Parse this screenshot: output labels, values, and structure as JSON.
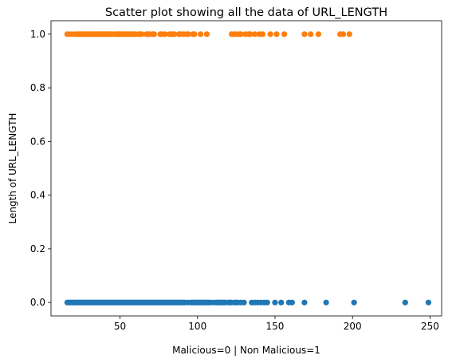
{
  "chart_data": {
    "type": "scatter",
    "title": "Scatter plot showing all the data of URL_LENGTH",
    "xlabel": "Malicious=0 | Non Malicious=1",
    "ylabel": "Length of URL_LENGTH",
    "xlim": [
      5.5,
      257.5
    ],
    "ylim": [
      -0.05,
      1.05
    ],
    "xticks": [
      50,
      100,
      150,
      200,
      250
    ],
    "xtick_labels": [
      "50",
      "100",
      "150",
      "200",
      "250"
    ],
    "yticks": [
      0.0,
      0.2,
      0.4,
      0.6,
      0.8,
      1.0
    ],
    "ytick_labels": [
      "0.0",
      "0.2",
      "0.4",
      "0.6",
      "0.8",
      "1.0"
    ],
    "grid": false,
    "series": [
      {
        "color": "#1f77b4",
        "y": 0,
        "x": [
          16,
          17,
          18,
          19,
          20,
          21,
          22,
          23,
          24,
          25,
          26,
          27,
          28,
          29,
          30,
          31,
          32,
          33,
          34,
          35,
          36,
          37,
          38,
          39,
          40,
          41,
          42,
          43,
          44,
          45,
          46,
          47,
          48,
          49,
          50,
          51,
          52,
          53,
          54,
          55,
          56,
          57,
          58,
          59,
          60,
          61,
          62,
          63,
          64,
          65,
          66,
          67,
          68,
          69,
          70,
          71,
          72,
          73,
          74,
          75,
          76,
          77,
          78,
          79,
          80,
          81,
          82,
          83,
          84,
          85,
          86,
          87,
          88,
          89,
          90,
          91,
          92,
          94,
          96,
          97,
          98,
          99,
          100,
          101,
          102,
          103,
          104,
          105,
          106,
          107,
          108,
          110,
          112,
          113,
          114,
          115,
          116,
          117,
          118,
          120,
          121,
          122,
          124,
          125,
          126,
          128,
          130,
          135,
          137,
          139,
          141,
          143,
          145,
          150,
          154,
          159,
          161,
          169,
          183,
          201,
          234,
          249
        ]
      },
      {
        "color": "#ff7f0e",
        "y": 1,
        "x": [
          16,
          18,
          20,
          22,
          23,
          24,
          25,
          26,
          27,
          28,
          29,
          30,
          31,
          32,
          33,
          34,
          35,
          36,
          37,
          38,
          39,
          40,
          41,
          42,
          43,
          44,
          45,
          47,
          48,
          49,
          50,
          51,
          52,
          53,
          54,
          55,
          56,
          57,
          58,
          59,
          60,
          62,
          63,
          64,
          67,
          68,
          69,
          71,
          72,
          76,
          77,
          79,
          82,
          83,
          84,
          85,
          88,
          89,
          91,
          93,
          94,
          97,
          98,
          102,
          106,
          122,
          124,
          125,
          127,
          128,
          131,
          133,
          134,
          137,
          140,
          142,
          147,
          151,
          156,
          169,
          173,
          178,
          192,
          194,
          198
        ]
      }
    ]
  }
}
